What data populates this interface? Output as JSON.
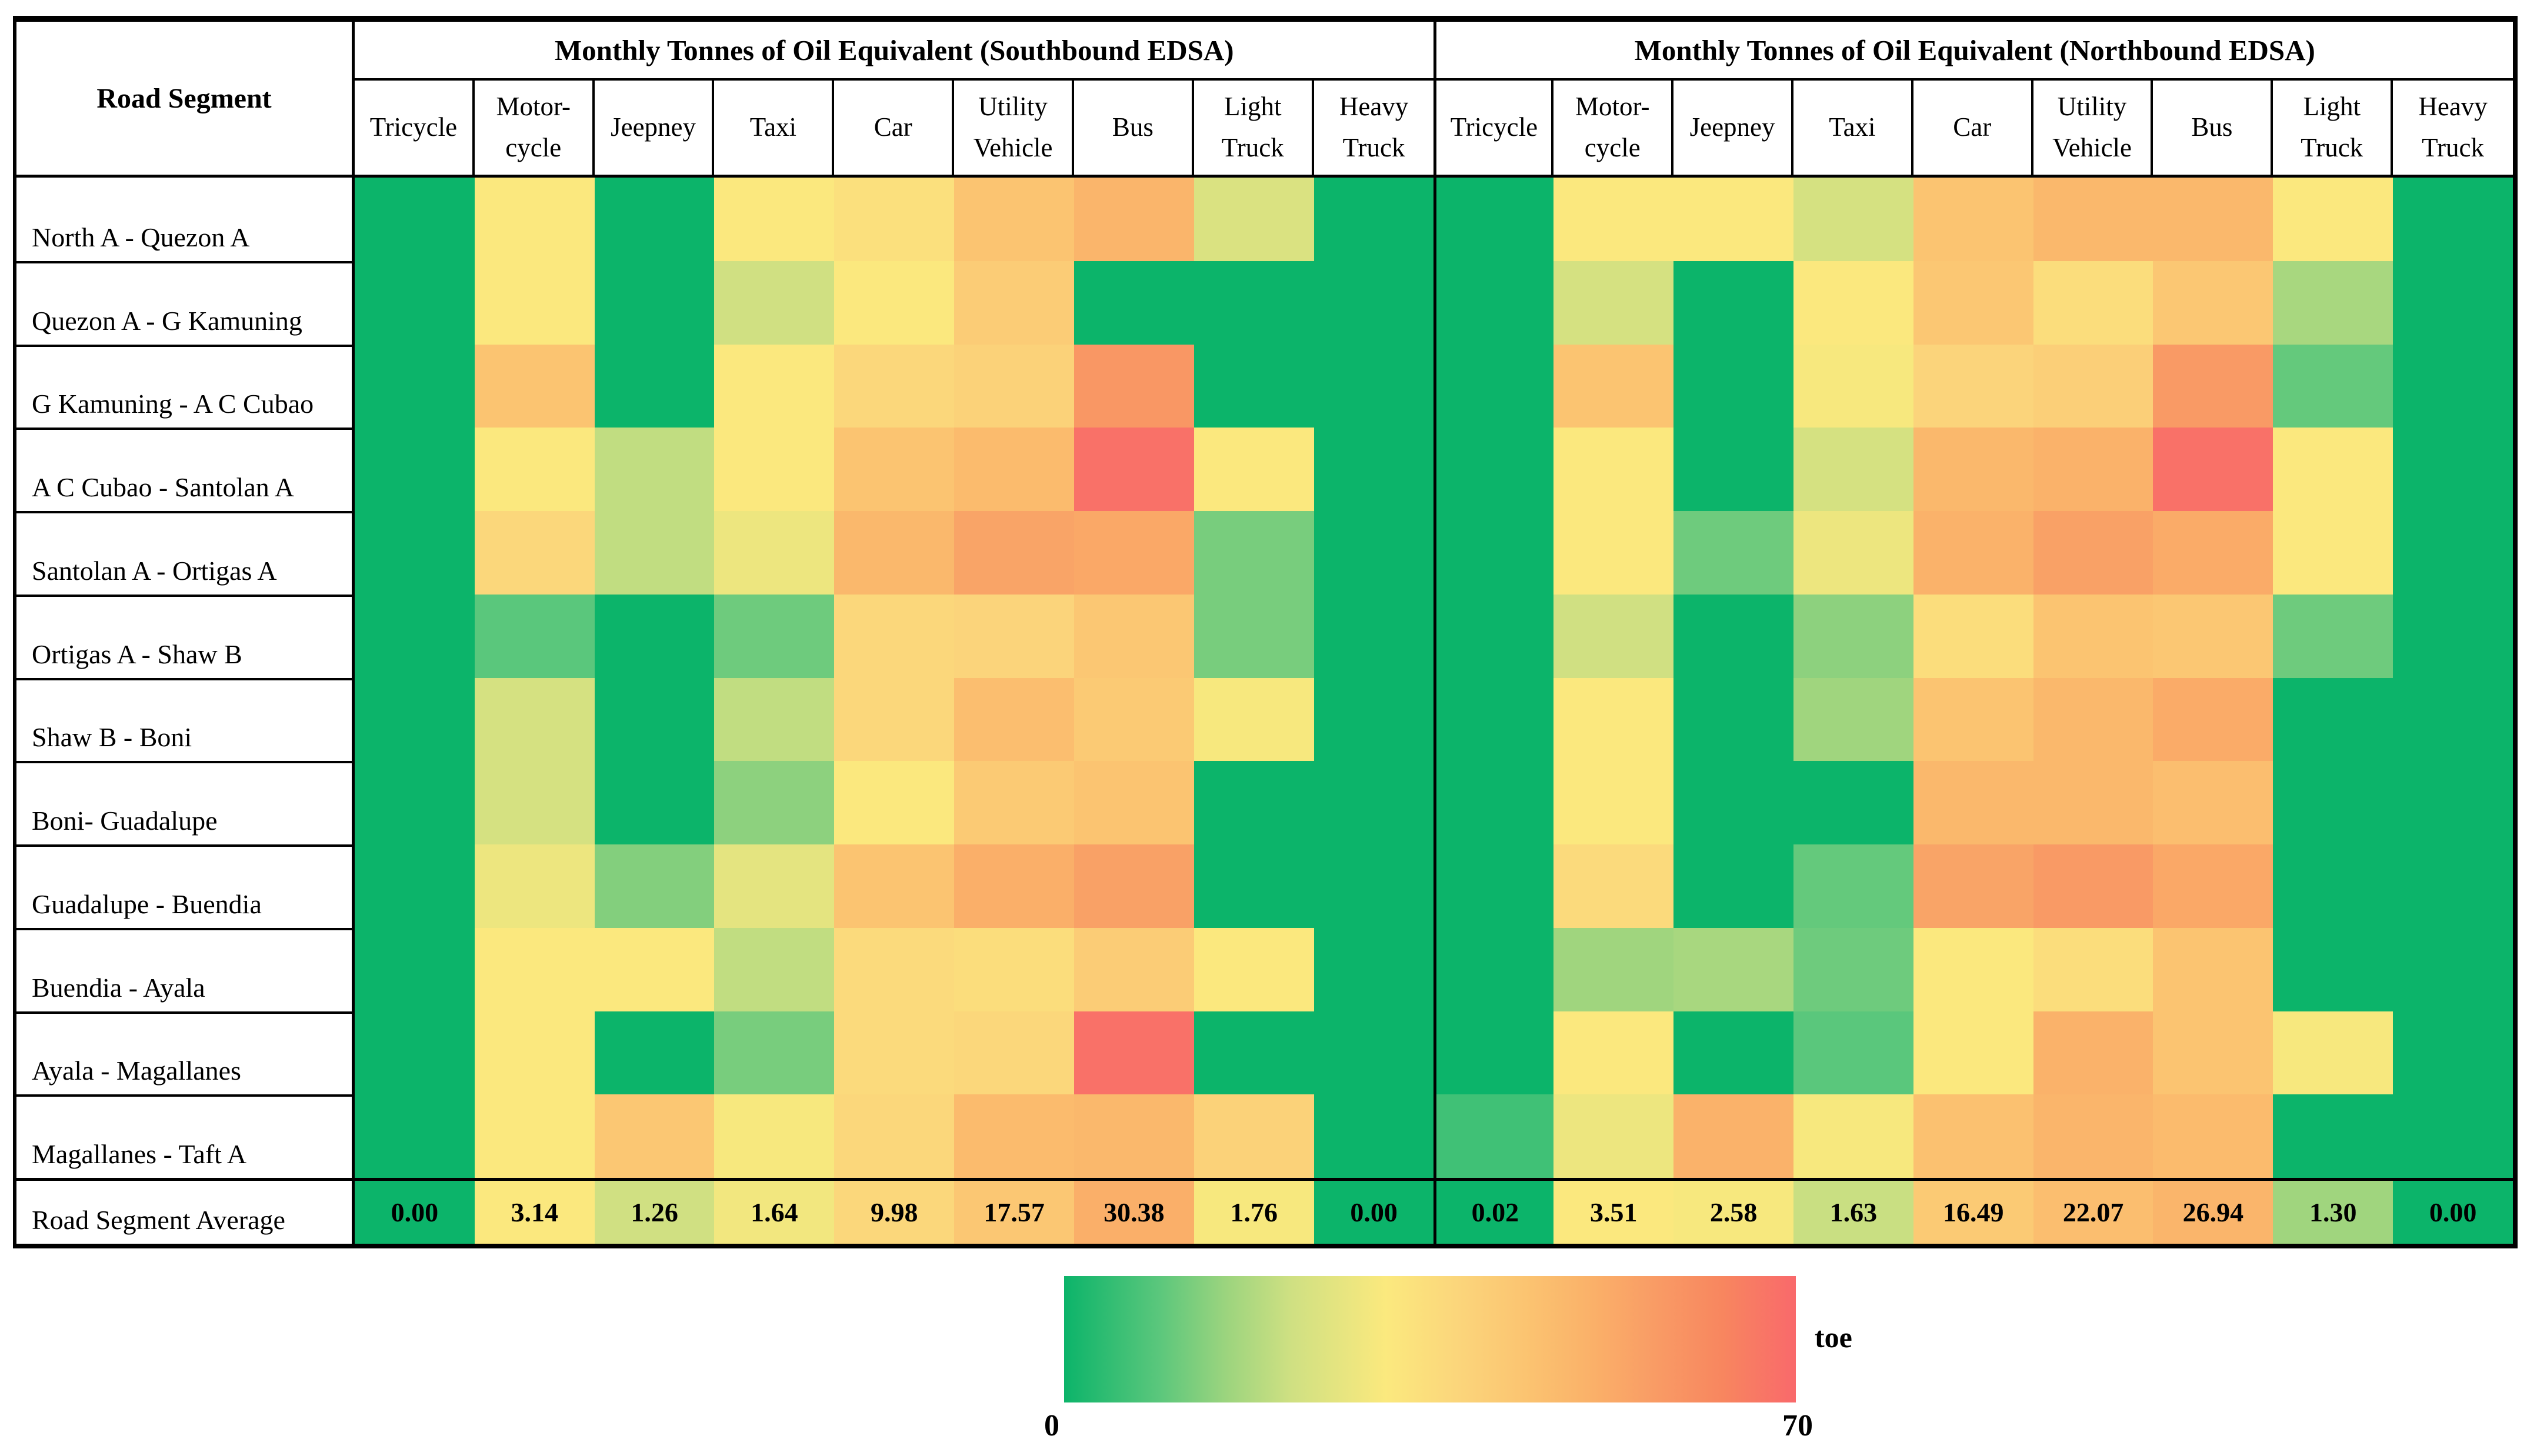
{
  "table": {
    "corner_header": "Road Segment",
    "groups": [
      {
        "title": "Monthly Tonnes of Oil Equivalent (Southbound EDSA)"
      },
      {
        "title": "Monthly Tonnes of Oil Equivalent (Northbound EDSA)"
      }
    ],
    "column_header_display": [
      "Tricycle",
      "Motor-\ncycle",
      "Jeepney",
      "Taxi",
      "Car",
      "Utility\nVehicle",
      "Bus",
      "Light\nTruck",
      "Heavy\nTruck"
    ],
    "average_row": {
      "label": "Road Segment Average",
      "southbound_labels": [
        "0.00",
        "3.14",
        "1.26",
        "1.64",
        "9.98",
        "17.57",
        "30.38",
        "1.76",
        "0.00"
      ],
      "northbound_labels": [
        "0.02",
        "3.51",
        "2.58",
        "1.63",
        "16.49",
        "22.07",
        "26.94",
        "1.30",
        "0.00"
      ],
      "southbound_color_values": [
        0,
        31,
        22,
        29,
        37,
        43,
        51,
        30,
        0
      ],
      "northbound_color_values": [
        0,
        31,
        30,
        21,
        42,
        46,
        49,
        16,
        0
      ]
    }
  },
  "legend": {
    "min_label": "0",
    "max_label": "70",
    "unit_label": "toe"
  },
  "colors": {
    "border": "#000000",
    "background": "#ffffff",
    "scale_stops": [
      {
        "pct": 0,
        "hex": "#0cb46a"
      },
      {
        "pct": 13,
        "hex": "#5bc77c"
      },
      {
        "pct": 22,
        "hex": "#9bd47e"
      },
      {
        "pct": 31,
        "hex": "#cfe082"
      },
      {
        "pct": 44,
        "hex": "#fbe97e"
      },
      {
        "pct": 54,
        "hex": "#fbd57b"
      },
      {
        "pct": 63,
        "hex": "#fbc471"
      },
      {
        "pct": 72,
        "hex": "#fab169"
      },
      {
        "pct": 81,
        "hex": "#f99b65"
      },
      {
        "pct": 90,
        "hex": "#f8865f"
      },
      {
        "pct": 100,
        "hex": "#f9696b"
      }
    ]
  },
  "chart_data": {
    "type": "heatmap",
    "title": "Monthly Tonnes of Oil Equivalent per road segment and vehicle type, EDSA",
    "unit": "toe",
    "colorbar_range": [
      0,
      70
    ],
    "legend_position": "bottom-center",
    "row_labels": [
      "North A - Quezon A",
      "Quezon A - G Kamuning",
      "G Kamuning - A C Cubao",
      "A C Cubao - Santolan A",
      "Santolan A - Ortigas A",
      "Ortigas A - Shaw B",
      "Shaw B - Boni",
      "Boni- Guadalupe",
      "Guadalupe - Buendia",
      "Buendia - Ayala",
      "Ayala - Magallanes",
      "Magallanes - Taft A"
    ],
    "column_groups": [
      "Monthly Tonnes of Oil Equivalent (Southbound EDSA)",
      "Monthly Tonnes of Oil Equivalent (Northbound EDSA)"
    ],
    "column_labels": [
      "Tricycle",
      "Motorcycle",
      "Jeepney",
      "Taxi",
      "Car",
      "Utility Vehicle",
      "Bus",
      "Light Truck",
      "Heavy Truck"
    ],
    "southbound_cell_values_toe_estimated_from_color": [
      [
        0,
        31,
        0,
        31,
        34,
        44,
        49,
        24,
        0
      ],
      [
        0,
        31,
        0,
        22,
        31,
        41,
        0,
        0,
        0
      ],
      [
        0,
        44,
        0,
        31,
        37,
        39,
        58,
        0,
        0
      ],
      [
        0,
        31,
        20,
        31,
        44,
        47,
        68,
        31,
        0
      ],
      [
        0,
        37,
        20,
        28,
        48,
        54,
        53,
        12,
        0
      ],
      [
        0,
        9,
        0,
        11,
        37,
        38,
        43,
        12,
        0
      ],
      [
        0,
        23,
        0,
        20,
        37,
        46,
        42,
        30,
        0
      ],
      [
        0,
        23,
        0,
        14,
        31,
        42,
        44,
        0,
        0
      ],
      [
        0,
        28,
        13,
        26,
        44,
        51,
        55,
        0,
        0
      ],
      [
        0,
        31,
        31,
        20,
        36,
        35,
        41,
        31,
        0
      ],
      [
        0,
        31,
        0,
        12,
        36,
        37,
        68,
        0,
        0
      ],
      [
        0,
        31,
        43,
        30,
        37,
        47,
        48,
        39,
        0
      ]
    ],
    "northbound_cell_values_toe_estimated_from_color": [
      [
        0,
        31,
        31,
        23,
        44,
        48,
        48,
        31,
        0
      ],
      [
        0,
        23,
        0,
        31,
        43,
        35,
        43,
        17,
        0
      ],
      [
        0,
        44,
        0,
        30,
        38,
        40,
        57,
        10,
        0
      ],
      [
        0,
        31,
        0,
        23,
        48,
        50,
        68,
        31,
        0
      ],
      [
        0,
        31,
        11,
        28,
        50,
        55,
        52,
        31,
        0
      ],
      [
        0,
        22,
        0,
        14,
        35,
        44,
        43,
        11,
        0
      ],
      [
        0,
        31,
        0,
        16,
        44,
        48,
        52,
        0,
        0
      ],
      [
        0,
        31,
        0,
        0,
        48,
        48,
        46,
        0,
        0
      ],
      [
        0,
        36,
        0,
        10,
        54,
        57,
        53,
        0,
        0
      ],
      [
        0,
        16,
        17,
        11,
        31,
        35,
        44,
        0,
        0
      ],
      [
        0,
        31,
        0,
        9,
        31,
        50,
        44,
        30,
        0
      ],
      [
        6,
        28,
        50,
        30,
        45,
        49,
        47,
        0,
        0
      ]
    ],
    "road_segment_average": {
      "label": "Road Segment Average",
      "southbound": [
        0.0,
        3.14,
        1.26,
        1.64,
        9.98,
        17.57,
        30.38,
        1.76,
        0.0
      ],
      "northbound": [
        0.02,
        3.51,
        2.58,
        1.63,
        16.49,
        22.07,
        26.94,
        1.3,
        0.0
      ]
    }
  }
}
